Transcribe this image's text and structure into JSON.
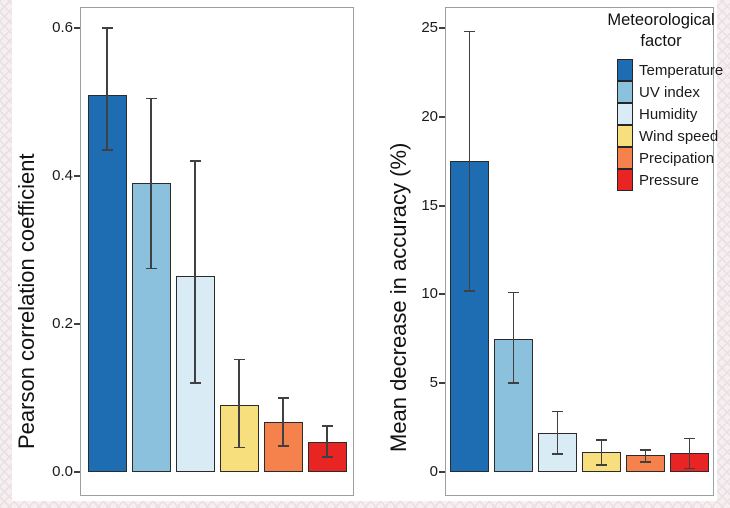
{
  "colors": {
    "error_bar": "#404040",
    "bar_border": "#2b2b2b",
    "panel_border": "#9aa0a3",
    "figure_background": "#ffffff",
    "slide_background": "#f5eff0"
  },
  "legend": {
    "title_line1": "Meteorological",
    "title_line2": "factor",
    "items": [
      {
        "label": "Temperature",
        "color": "#1e6db2"
      },
      {
        "label": "UV index",
        "color": "#8cc1dd"
      },
      {
        "label": "Humidity",
        "color": "#d9ebf4"
      },
      {
        "label": "Wind speed",
        "color": "#f8df7e"
      },
      {
        "label": "Precipation",
        "color": "#f5814c"
      },
      {
        "label": "Pressure",
        "color": "#e92524"
      }
    ]
  },
  "chart_data": [
    {
      "type": "bar",
      "title": "",
      "xlabel": "",
      "ylabel": "Pearson correlation coefficient",
      "categories": [
        "Temperature",
        "UV index",
        "Humidity",
        "Wind speed",
        "Precipation",
        "Pressure"
      ],
      "values": [
        0.51,
        0.39,
        0.265,
        0.09,
        0.068,
        0.04
      ],
      "error_low": [
        0.435,
        0.275,
        0.12,
        0.033,
        0.035,
        0.02
      ],
      "error_high": [
        0.6,
        0.505,
        0.42,
        0.152,
        0.1,
        0.062
      ],
      "bar_colors": [
        "#1e6db2",
        "#8cc1dd",
        "#d9ebf4",
        "#f8df7e",
        "#f5814c",
        "#e92524"
      ],
      "ytick_values": [
        0,
        0.2,
        0.4,
        0.6
      ],
      "ytick_labels": [
        "0.0",
        "0.2",
        "0.4",
        "0.6"
      ],
      "ylim": [
        0,
        0.62
      ],
      "grid": false,
      "legend_position": "none"
    },
    {
      "type": "bar",
      "title": "",
      "xlabel": "",
      "ylabel": "Mean decrease in accuracy (%)",
      "categories": [
        "Temperature",
        "UV index",
        "Humidity",
        "Wind speed",
        "Precipation",
        "Pressure"
      ],
      "values": [
        17.5,
        7.5,
        2.2,
        1.1,
        0.95,
        1.05
      ],
      "error_low": [
        10.2,
        5.0,
        1.0,
        0.4,
        0.55,
        0.2
      ],
      "error_high": [
        24.8,
        10.1,
        3.4,
        1.8,
        1.25,
        1.9
      ],
      "bar_colors": [
        "#1e6db2",
        "#8cc1dd",
        "#d9ebf4",
        "#f8df7e",
        "#f5814c",
        "#e92524"
      ],
      "ytick_values": [
        0,
        5,
        10,
        15,
        20,
        25
      ],
      "ytick_labels": [
        "0",
        "5",
        "10",
        "15",
        "20",
        "25"
      ],
      "ylim": [
        0,
        25.5
      ],
      "grid": false,
      "legend_position": "top-right"
    }
  ]
}
